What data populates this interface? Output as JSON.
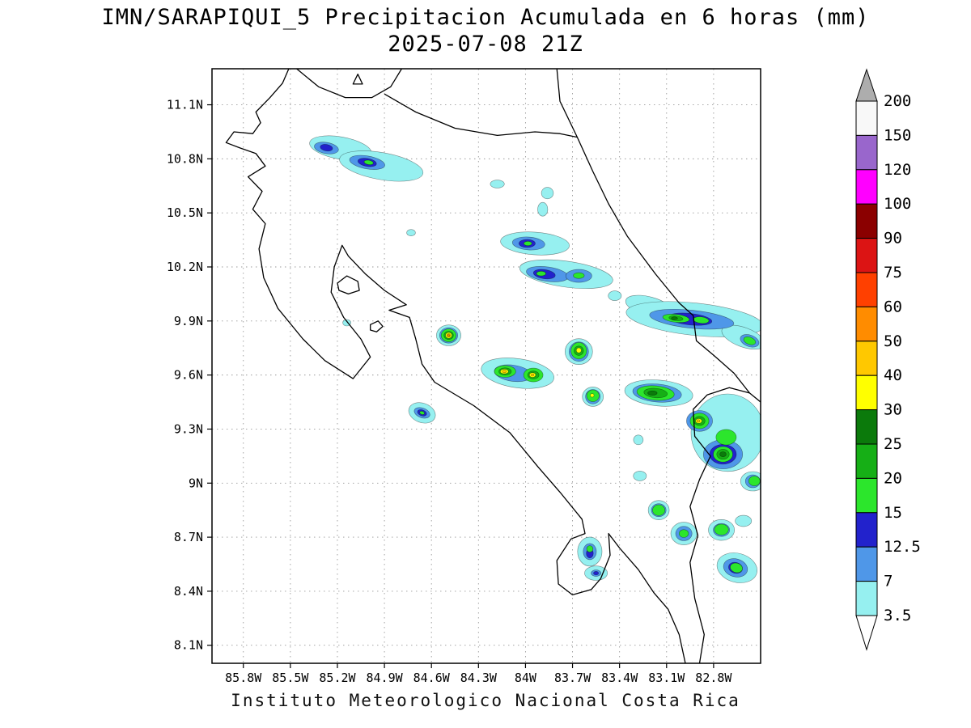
{
  "title_line1": "IMN/SARAPIQUI_5 Precipitacion Acumulada en 6 horas (mm)",
  "title_line2": "2025-07-08 21Z",
  "footer": "Instituto Meteorologico Nacional Costa Rica",
  "chart_data": {
    "type": "heatmap",
    "title": "IMN/SARAPIQUI_5 Precipitacion Acumulada en 6 horas (mm)",
    "subtitle": "2025-07-08 21Z",
    "units": "mm",
    "region": "Costa Rica",
    "legend_position": "right",
    "grid": "dotted",
    "lon_range": [
      -86.0,
      -82.5
    ],
    "lat_range": [
      8.0,
      11.3
    ],
    "x_ticks": [
      "85.8W",
      "85.5W",
      "85.2W",
      "84.9W",
      "84.6W",
      "84.3W",
      "84W",
      "83.7W",
      "83.4W",
      "83.1W",
      "82.8W"
    ],
    "y_ticks": [
      "11.1N",
      "10.8N",
      "10.5N",
      "10.2N",
      "9.9N",
      "9.6N",
      "9.3N",
      "9N",
      "8.7N",
      "8.4N",
      "8.1N"
    ],
    "levels": [
      3.5,
      7,
      12.5,
      15,
      20,
      25,
      30,
      40,
      50,
      60,
      75,
      90,
      100,
      120,
      150,
      200
    ],
    "colorbar_labels": [
      "200",
      "150",
      "120",
      "100",
      "90",
      "75",
      "60",
      "50",
      "40",
      "30",
      "25",
      "20",
      "15",
      "12.5",
      "7",
      "3.5"
    ],
    "level_colors": {
      "3.5": "#96F0F0",
      "7": "#4F97E8",
      "12.5": "#2222CC",
      "15": "#2CE62C",
      "20": "#16AF16",
      "25": "#0B7A0B",
      "30": "#FFFF00",
      "40": "#FFC800",
      "50": "#FF8C00",
      "60": "#FF4000",
      "75": "#DC1414",
      "90": "#8B0000",
      "100": "#FF00FF",
      "120": "#9966CC",
      "150": "#F8F8F8",
      "200": "#ADADAD"
    },
    "below_color": "#FFFFFF",
    "features_format": [
      "lon",
      "lat",
      "rx_deg",
      "ry_deg",
      "rot_deg",
      "level_mm"
    ],
    "features": [
      [
        -85.18,
        10.86,
        0.2,
        0.062,
        10,
        3.5
      ],
      [
        -84.92,
        10.76,
        0.27,
        0.075,
        10,
        3.5
      ],
      [
        -84.18,
        10.66,
        0.045,
        0.022,
        0,
        3.5
      ],
      [
        -83.86,
        10.61,
        0.038,
        0.032,
        0,
        3.5
      ],
      [
        -83.89,
        10.52,
        0.032,
        0.038,
        0,
        3.5
      ],
      [
        -84.73,
        10.39,
        0.028,
        0.018,
        0,
        3.5
      ],
      [
        -83.94,
        10.33,
        0.22,
        0.063,
        4,
        3.5
      ],
      [
        -83.74,
        10.16,
        0.3,
        0.072,
        8,
        3.5
      ],
      [
        -83.43,
        10.04,
        0.042,
        0.027,
        0,
        3.5
      ],
      [
        -83.21,
        9.98,
        0.156,
        0.054,
        15,
        3.5
      ],
      [
        -82.92,
        9.91,
        0.44,
        0.09,
        6,
        3.5
      ],
      [
        -82.61,
        9.81,
        0.145,
        0.054,
        20,
        3.5
      ],
      [
        -84.49,
        9.82,
        0.078,
        0.058,
        0,
        3.5
      ],
      [
        -85.14,
        9.89,
        0.026,
        0.018,
        0,
        3.5
      ],
      [
        -83.66,
        9.73,
        0.088,
        0.072,
        0,
        3.5
      ],
      [
        -84.05,
        9.61,
        0.234,
        0.081,
        8,
        3.5
      ],
      [
        -83.57,
        9.48,
        0.067,
        0.054,
        0,
        3.5
      ],
      [
        -83.15,
        9.5,
        0.218,
        0.072,
        5,
        3.5
      ],
      [
        -82.71,
        9.28,
        0.234,
        0.215,
        0,
        3.5
      ],
      [
        -84.66,
        9.39,
        0.088,
        0.054,
        20,
        3.5
      ],
      [
        -83.28,
        9.24,
        0.031,
        0.027,
        0,
        3.5
      ],
      [
        -83.27,
        9.04,
        0.042,
        0.027,
        0,
        3.5
      ],
      [
        -82.55,
        9.01,
        0.078,
        0.054,
        0,
        3.5
      ],
      [
        -83.15,
        8.85,
        0.067,
        0.054,
        0,
        3.5
      ],
      [
        -82.99,
        8.72,
        0.083,
        0.063,
        0,
        3.5
      ],
      [
        -82.75,
        8.74,
        0.083,
        0.058,
        0,
        3.5
      ],
      [
        -82.61,
        8.79,
        0.052,
        0.031,
        0,
        3.5
      ],
      [
        -83.59,
        8.62,
        0.078,
        0.081,
        0,
        3.5
      ],
      [
        -83.55,
        8.5,
        0.073,
        0.04,
        0,
        3.5
      ],
      [
        -82.65,
        8.53,
        0.13,
        0.081,
        15,
        3.5
      ],
      [
        -85.27,
        10.86,
        0.078,
        0.031,
        10,
        7
      ],
      [
        -85.01,
        10.78,
        0.114,
        0.036,
        10,
        7
      ],
      [
        -83.98,
        10.33,
        0.104,
        0.036,
        4,
        7
      ],
      [
        -83.86,
        10.16,
        0.135,
        0.04,
        8,
        7
      ],
      [
        -83.66,
        10.15,
        0.083,
        0.036,
        0,
        7
      ],
      [
        -82.94,
        9.91,
        0.27,
        0.05,
        6,
        7
      ],
      [
        -82.57,
        9.79,
        0.062,
        0.032,
        20,
        7
      ],
      [
        -84.49,
        9.82,
        0.058,
        0.043,
        0,
        7
      ],
      [
        -83.66,
        9.73,
        0.062,
        0.054,
        0,
        7
      ],
      [
        -84.08,
        9.61,
        0.12,
        0.045,
        8,
        7
      ],
      [
        -83.16,
        9.5,
        0.156,
        0.05,
        5,
        7
      ],
      [
        -82.89,
        9.345,
        0.083,
        0.058,
        0,
        7
      ],
      [
        -82.74,
        9.16,
        0.125,
        0.081,
        0,
        7
      ],
      [
        -84.66,
        9.39,
        0.052,
        0.027,
        20,
        7
      ],
      [
        -83.57,
        9.48,
        0.047,
        0.04,
        0,
        7
      ],
      [
        -82.55,
        9.01,
        0.047,
        0.036,
        0,
        7
      ],
      [
        -83.15,
        8.85,
        0.047,
        0.036,
        0,
        7
      ],
      [
        -82.75,
        8.74,
        0.052,
        0.036,
        0,
        7
      ],
      [
        -82.99,
        8.72,
        0.052,
        0.04,
        0,
        7
      ],
      [
        -83.59,
        8.62,
        0.042,
        0.045,
        0,
        7
      ],
      [
        -83.55,
        8.5,
        0.031,
        0.018,
        0,
        7
      ],
      [
        -82.66,
        8.53,
        0.078,
        0.05,
        15,
        7
      ],
      [
        -85.27,
        10.862,
        0.04,
        0.018,
        10,
        12.5
      ],
      [
        -85.01,
        10.78,
        0.06,
        0.022,
        10,
        12.5
      ],
      [
        -83.99,
        10.33,
        0.052,
        0.022,
        0,
        12.5
      ],
      [
        -83.88,
        10.16,
        0.07,
        0.025,
        8,
        12.5
      ],
      [
        -82.95,
        9.91,
        0.14,
        0.032,
        6,
        12.5
      ],
      [
        -83.16,
        9.5,
        0.1,
        0.036,
        5,
        12.5
      ],
      [
        -82.74,
        9.16,
        0.085,
        0.055,
        0,
        12.5
      ],
      [
        -84.66,
        9.39,
        0.03,
        0.016,
        20,
        12.5
      ],
      [
        -83.59,
        8.61,
        0.022,
        0.025,
        0,
        12.5
      ],
      [
        -83.55,
        8.5,
        0.016,
        0.01,
        0,
        12.5
      ],
      [
        -82.66,
        8.53,
        0.045,
        0.03,
        15,
        12.5
      ],
      [
        -85.0,
        10.78,
        0.03,
        0.012,
        10,
        15
      ],
      [
        -83.985,
        10.33,
        0.026,
        0.012,
        0,
        15
      ],
      [
        -83.9,
        10.163,
        0.03,
        0.013,
        0,
        15
      ],
      [
        -83.66,
        10.152,
        0.035,
        0.016,
        0,
        15
      ],
      [
        -83.04,
        9.915,
        0.085,
        0.022,
        6,
        15
      ],
      [
        -82.88,
        9.905,
        0.05,
        0.018,
        6,
        15
      ],
      [
        -82.57,
        9.79,
        0.04,
        0.02,
        20,
        15
      ],
      [
        -84.49,
        9.82,
        0.048,
        0.036,
        0,
        15
      ],
      [
        -83.66,
        9.735,
        0.05,
        0.046,
        0,
        15
      ],
      [
        -84.13,
        9.62,
        0.068,
        0.033,
        0,
        15
      ],
      [
        -83.95,
        9.6,
        0.062,
        0.038,
        0,
        15
      ],
      [
        -83.57,
        9.485,
        0.04,
        0.033,
        0,
        15
      ],
      [
        -83.17,
        9.5,
        0.12,
        0.04,
        5,
        15
      ],
      [
        -82.89,
        9.345,
        0.06,
        0.043,
        0,
        15
      ],
      [
        -82.72,
        9.255,
        0.065,
        0.043,
        0,
        15
      ],
      [
        -82.74,
        9.16,
        0.062,
        0.043,
        0,
        15
      ],
      [
        -84.66,
        9.39,
        0.016,
        0.009,
        20,
        15
      ],
      [
        -82.54,
        9.012,
        0.036,
        0.027,
        0,
        15
      ],
      [
        -83.15,
        8.85,
        0.04,
        0.03,
        0,
        15
      ],
      [
        -82.99,
        8.72,
        0.03,
        0.022,
        0,
        15
      ],
      [
        -82.75,
        8.742,
        0.045,
        0.03,
        0,
        15
      ],
      [
        -83.59,
        8.635,
        0.02,
        0.018,
        0,
        15
      ],
      [
        -82.655,
        8.53,
        0.04,
        0.026,
        15,
        15
      ],
      [
        -83.04,
        9.915,
        0.045,
        0.013,
        6,
        20
      ],
      [
        -83.17,
        9.5,
        0.075,
        0.026,
        5,
        20
      ],
      [
        -82.89,
        9.345,
        0.035,
        0.025,
        0,
        20
      ],
      [
        -82.74,
        9.16,
        0.04,
        0.028,
        0,
        20
      ],
      [
        -84.13,
        9.62,
        0.04,
        0.02,
        0,
        20
      ],
      [
        -83.95,
        9.6,
        0.036,
        0.022,
        0,
        20
      ],
      [
        -83.66,
        9.735,
        0.03,
        0.026,
        0,
        20
      ],
      [
        -84.49,
        9.82,
        0.03,
        0.023,
        0,
        20
      ],
      [
        -83.05,
        9.915,
        0.02,
        0.008,
        0,
        25
      ],
      [
        -83.19,
        9.5,
        0.03,
        0.012,
        0,
        25
      ],
      [
        -82.74,
        9.16,
        0.02,
        0.014,
        0,
        25
      ],
      [
        -84.13,
        9.62,
        0.02,
        0.011,
        0,
        25
      ],
      [
        -84.49,
        9.82,
        0.02,
        0.016,
        0,
        30
      ],
      [
        -84.135,
        9.62,
        0.026,
        0.013,
        0,
        30
      ],
      [
        -83.955,
        9.6,
        0.02,
        0.013,
        0,
        30
      ],
      [
        -83.66,
        9.737,
        0.016,
        0.014,
        0,
        30
      ],
      [
        -82.895,
        9.345,
        0.02,
        0.013,
        0,
        30
      ],
      [
        -83.575,
        9.487,
        0.012,
        0.01,
        0,
        30
      ],
      [
        -84.49,
        9.82,
        0.012,
        0.009,
        0,
        40
      ],
      [
        -84.135,
        9.62,
        0.013,
        0.007,
        0,
        40
      ],
      [
        -83.955,
        9.6,
        0.009,
        0.006,
        0,
        40
      ],
      [
        -82.897,
        9.345,
        0.01,
        0.007,
        0,
        40
      ],
      [
        -84.49,
        9.82,
        0.007,
        0.005,
        0,
        50
      ]
    ],
    "coastlines": {
      "pacific_and_nicoya": [
        [
          -82.98,
          8.0
        ],
        [
          -83.02,
          8.16
        ],
        [
          -83.09,
          8.3
        ],
        [
          -83.18,
          8.39
        ],
        [
          -83.28,
          8.52
        ],
        [
          -83.4,
          8.64
        ],
        [
          -83.47,
          8.72
        ],
        [
          -83.46,
          8.6
        ],
        [
          -83.52,
          8.47
        ],
        [
          -83.58,
          8.41
        ],
        [
          -83.7,
          8.38
        ],
        [
          -83.79,
          8.44
        ],
        [
          -83.8,
          8.57
        ],
        [
          -83.71,
          8.69
        ],
        [
          -83.62,
          8.72
        ],
        [
          -83.64,
          8.8
        ],
        [
          -83.78,
          8.95
        ],
        [
          -83.92,
          9.09
        ],
        [
          -84.1,
          9.28
        ],
        [
          -84.33,
          9.43
        ],
        [
          -84.58,
          9.56
        ],
        [
          -84.66,
          9.66
        ],
        [
          -84.7,
          9.8
        ],
        [
          -84.74,
          9.92
        ],
        [
          -84.87,
          9.96
        ],
        [
          -84.76,
          9.99
        ],
        [
          -84.9,
          10.07
        ],
        [
          -85.02,
          10.16
        ],
        [
          -85.13,
          10.26
        ],
        [
          -85.17,
          10.32
        ],
        [
          -85.22,
          10.2
        ],
        [
          -85.24,
          10.06
        ],
        [
          -85.16,
          9.92
        ],
        [
          -85.05,
          9.8
        ],
        [
          -84.99,
          9.7
        ],
        [
          -85.1,
          9.58
        ],
        [
          -85.28,
          9.68
        ],
        [
          -85.42,
          9.8
        ],
        [
          -85.58,
          9.97
        ],
        [
          -85.67,
          10.14
        ],
        [
          -85.7,
          10.3
        ],
        [
          -85.66,
          10.44
        ],
        [
          -85.74,
          10.52
        ],
        [
          -85.68,
          10.62
        ],
        [
          -85.77,
          10.7
        ],
        [
          -85.66,
          10.76
        ],
        [
          -85.72,
          10.83
        ],
        [
          -85.82,
          10.86
        ],
        [
          -85.91,
          10.89
        ],
        [
          -85.86,
          10.95
        ],
        [
          -85.74,
          10.94
        ],
        [
          -85.69,
          11.0
        ],
        [
          -85.72,
          11.06
        ],
        [
          -85.63,
          11.14
        ],
        [
          -85.55,
          11.22
        ],
        [
          -85.51,
          11.3
        ]
      ],
      "lake_nicaragua_shore": [
        [
          -85.46,
          11.3
        ],
        [
          -85.32,
          11.2
        ],
        [
          -85.15,
          11.14
        ],
        [
          -84.98,
          11.14
        ],
        [
          -84.86,
          11.2
        ],
        [
          -84.79,
          11.3
        ]
      ],
      "san_juan_river_border": [
        [
          -84.9,
          11.16
        ],
        [
          -84.7,
          11.06
        ],
        [
          -84.45,
          10.97
        ],
        [
          -84.18,
          10.93
        ],
        [
          -83.94,
          10.95
        ],
        [
          -83.78,
          10.94
        ],
        [
          -83.67,
          10.92
        ]
      ],
      "caribbean_coast": [
        [
          -83.8,
          11.3
        ],
        [
          -83.78,
          11.12
        ],
        [
          -83.67,
          10.92
        ],
        [
          -83.57,
          10.73
        ],
        [
          -83.47,
          10.55
        ],
        [
          -83.35,
          10.37
        ],
        [
          -83.17,
          10.16
        ],
        [
          -83.02,
          10.0
        ],
        [
          -82.93,
          9.93
        ],
        [
          -82.91,
          9.79
        ],
        [
          -82.8,
          9.71
        ],
        [
          -82.67,
          9.61
        ],
        [
          -82.57,
          9.5
        ],
        [
          -82.5,
          9.45
        ]
      ],
      "panama_border": [
        [
          -82.57,
          9.5
        ],
        [
          -82.7,
          9.53
        ],
        [
          -82.84,
          9.49
        ],
        [
          -82.93,
          9.41
        ],
        [
          -82.92,
          9.26
        ],
        [
          -82.82,
          9.15
        ],
        [
          -82.89,
          9.02
        ],
        [
          -82.95,
          8.87
        ],
        [
          -82.9,
          8.71
        ],
        [
          -82.95,
          8.56
        ],
        [
          -82.92,
          8.36
        ],
        [
          -82.86,
          8.16
        ],
        [
          -82.89,
          8.0
        ]
      ],
      "islands": [
        [
          [
            -85.2,
            10.11
          ],
          [
            -85.14,
            10.15
          ],
          [
            -85.07,
            10.12
          ],
          [
            -85.06,
            10.07
          ],
          [
            -85.13,
            10.05
          ],
          [
            -85.19,
            10.07
          ]
        ],
        [
          [
            -84.99,
            9.88
          ],
          [
            -84.94,
            9.9
          ],
          [
            -84.91,
            9.87
          ],
          [
            -84.95,
            9.84
          ],
          [
            -84.99,
            9.85
          ]
        ],
        [
          [
            -85.1,
            11.215
          ],
          [
            -85.04,
            11.215
          ],
          [
            -85.07,
            11.27
          ]
        ]
      ]
    }
  }
}
